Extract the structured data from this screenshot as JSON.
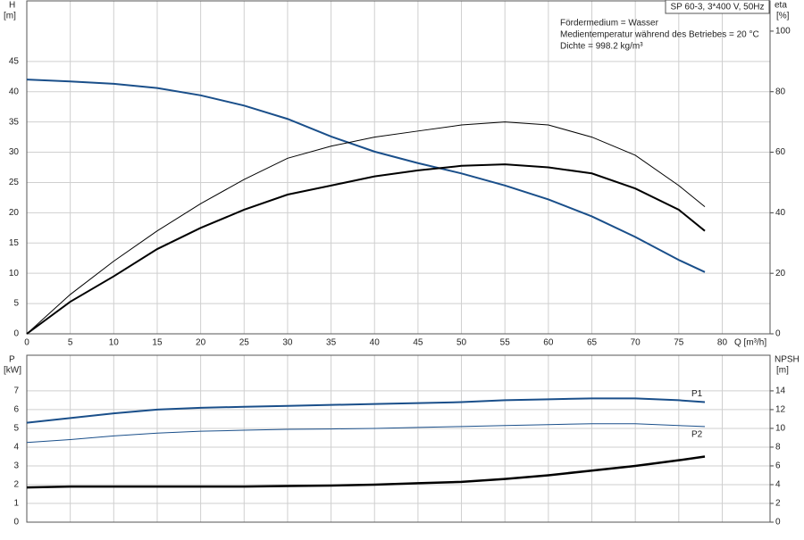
{
  "chart_data": [
    {
      "type": "line",
      "title": "SP 60-3, 3*400 V, 50Hz",
      "annotations": [
        "Fördermedium = Wasser",
        "Medientemperatur während des Betriebes = 20 °C",
        "Dichte = 998.2 kg/m³"
      ],
      "y_label": [
        "H",
        "[m]"
      ],
      "y2_label": [
        "eta",
        "[%]"
      ],
      "x_label": "Q [m³/h]",
      "x": [
        0,
        5,
        10,
        15,
        20,
        25,
        30,
        35,
        40,
        45,
        50,
        55,
        60,
        65,
        70,
        75,
        78
      ],
      "xlim": [
        0,
        85.5
      ],
      "xticks": [
        0,
        5,
        10,
        15,
        20,
        25,
        30,
        35,
        40,
        45,
        50,
        55,
        60,
        65,
        70,
        75,
        80
      ],
      "ylim": [
        0,
        55
      ],
      "yticks": [
        0,
        5,
        10,
        15,
        20,
        25,
        30,
        35,
        40,
        45
      ],
      "y2lim": [
        0,
        110
      ],
      "y2ticks": [
        0,
        20,
        40,
        60,
        80,
        100
      ],
      "grid": true,
      "series": [
        {
          "color": "#1a4f8a",
          "width": 2,
          "values": [
            42,
            41.7,
            41.3,
            40.6,
            39.4,
            37.7,
            35.5,
            32.6,
            30.1,
            28.2,
            26.5,
            24.5,
            22.2,
            19.4,
            16.0,
            12.2,
            10.2
          ]
        },
        {
          "color": "#000000",
          "width": 1,
          "axis": "y2",
          "values": [
            0,
            13,
            24,
            34,
            43,
            51,
            58,
            62,
            65,
            67,
            69,
            70,
            69,
            65,
            59,
            49,
            42
          ]
        },
        {
          "color": "#000000",
          "width": 2,
          "axis": "y2",
          "values": [
            0,
            10.6,
            19,
            28,
            35,
            41,
            46,
            49,
            52,
            54,
            55.5,
            56,
            55,
            53,
            48,
            41,
            34
          ]
        }
      ]
    },
    {
      "type": "line",
      "y_label": [
        "P",
        "[kW]"
      ],
      "y2_label": [
        "NPSH",
        "[m]"
      ],
      "x": [
        0,
        5,
        10,
        15,
        20,
        25,
        30,
        35,
        40,
        45,
        50,
        55,
        60,
        65,
        70,
        75,
        78
      ],
      "xlim": [
        0,
        85.5
      ],
      "ylim": [
        0,
        8.9
      ],
      "yticks": [
        0,
        1,
        2,
        3,
        4,
        5,
        6,
        7
      ],
      "y2lim": [
        0,
        17.8
      ],
      "y2ticks": [
        0,
        2,
        4,
        6,
        8,
        10,
        12,
        14
      ],
      "grid": true,
      "series": [
        {
          "name": "P1",
          "color": "#1a4f8a",
          "width": 2,
          "values": [
            5.3,
            5.55,
            5.8,
            6.0,
            6.1,
            6.15,
            6.2,
            6.25,
            6.3,
            6.35,
            6.4,
            6.5,
            6.55,
            6.6,
            6.6,
            6.5,
            6.4
          ]
        },
        {
          "name": "P2",
          "color": "#1a4f8a",
          "width": 1,
          "values": [
            4.25,
            4.4,
            4.6,
            4.75,
            4.85,
            4.9,
            4.95,
            4.97,
            5.0,
            5.05,
            5.1,
            5.15,
            5.2,
            5.25,
            5.25,
            5.15,
            5.1
          ]
        },
        {
          "color": "#000000",
          "width": 2.5,
          "axis": "y2",
          "values": [
            3.7,
            3.8,
            3.8,
            3.8,
            3.8,
            3.8,
            3.85,
            3.9,
            4.0,
            4.15,
            4.3,
            4.6,
            5.0,
            5.5,
            6.0,
            6.6,
            7.0
          ]
        }
      ]
    }
  ]
}
